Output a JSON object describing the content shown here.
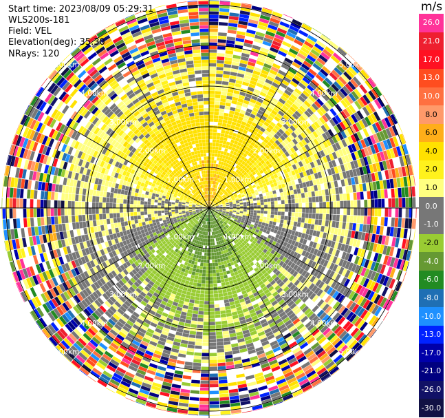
{
  "header": {
    "start_time": "Start time: 2023/08/09 05:29:31",
    "instrument": "WLS200s-181",
    "field": "Field: VEL",
    "elevation": "Elevation(deg): 35.30",
    "nrays": "NRays: 120"
  },
  "colorbar": {
    "unit": "m/s",
    "labels": [
      "26.0",
      "21.0",
      "17.0",
      "13.0",
      "10.0",
      "8.0",
      "6.0",
      "4.0",
      "2.0",
      "1.0",
      "0.0",
      "-1.0",
      "-2.0",
      "-4.0",
      "-6.0",
      "-8.0",
      "-10.0",
      "-13.0",
      "-17.0",
      "-21.0",
      "-26.0",
      "-30.0"
    ],
    "colors": [
      "#ff3399",
      "#ee1f2f",
      "#ff1122",
      "#ff4d1f",
      "#ff7040",
      "#ff9a6a",
      "#ffae19",
      "#ffe100",
      "#fff21c",
      "#ffff80",
      "#777777",
      "#777777",
      "#99cc33",
      "#669933",
      "#228b22",
      "#1f6fb4",
      "#1e90ff",
      "#0022ff",
      "#0000aa",
      "#000080",
      "#111166",
      "#111144"
    ]
  },
  "chart_data": {
    "type": "ppi",
    "title": "",
    "center_range_unit": "km",
    "range_ring_labels": [
      "1.00km",
      "2.00km",
      "3.00km",
      "4.00km",
      "5.00km"
    ],
    "ring_ranges_km": [
      1,
      2,
      3,
      4,
      5
    ],
    "max_range_km": 5.5,
    "n_rays": 120,
    "field": "VEL",
    "velocity_pattern": {
      "north_near": 2.0,
      "north_core": 6.0,
      "south_near": -2.0,
      "south_core": -6.0,
      "noise_beyond_km": 3.8
    }
  }
}
